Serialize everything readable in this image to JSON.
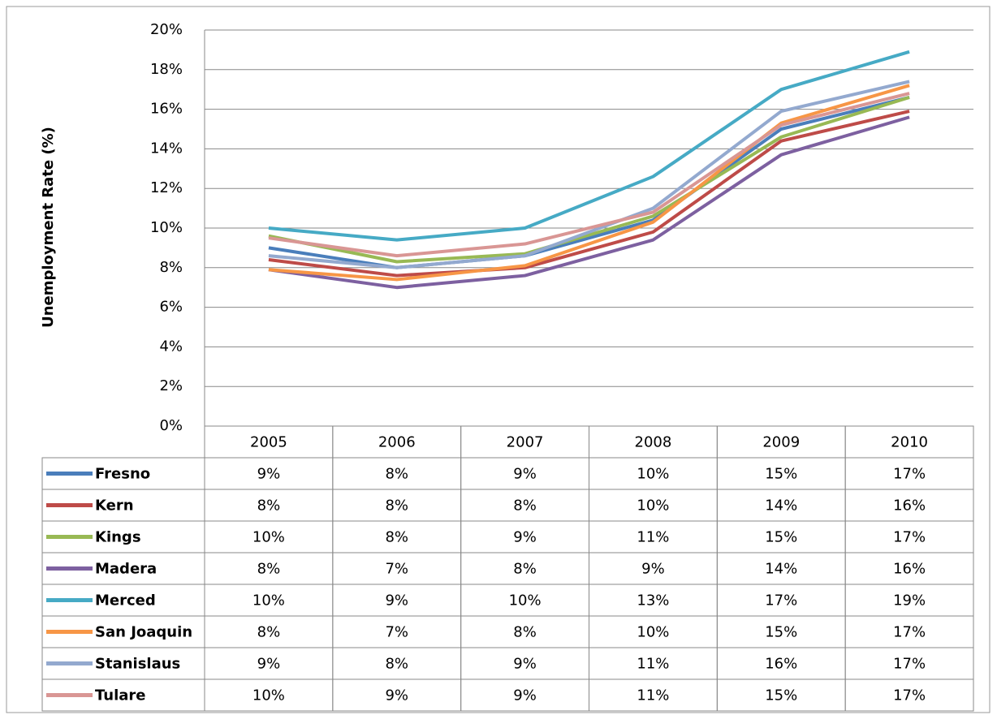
{
  "chart_data": {
    "type": "line",
    "y_label": "Unemployment Rate (%)",
    "categories": [
      "2005",
      "2006",
      "2007",
      "2008",
      "2009",
      "2010"
    ],
    "ylim": [
      0,
      20
    ],
    "yticks": [
      {
        "value": 0,
        "label": "0%"
      },
      {
        "value": 2,
        "label": "2%"
      },
      {
        "value": 4,
        "label": "4%"
      },
      {
        "value": 6,
        "label": "6%"
      },
      {
        "value": 8,
        "label": "8%"
      },
      {
        "value": 10,
        "label": "10%"
      },
      {
        "value": 12,
        "label": "12%"
      },
      {
        "value": 14,
        "label": "14%"
      },
      {
        "value": 16,
        "label": "16%"
      },
      {
        "value": 18,
        "label": "18%"
      },
      {
        "value": 20,
        "label": "20%"
      }
    ],
    "grid": true,
    "series": [
      {
        "name": "Fresno",
        "color": "#4a7ebb",
        "values": [
          9.0,
          8.0,
          8.6,
          10.4,
          15.0,
          16.6
        ],
        "value_labels": [
          "9%",
          "8%",
          "9%",
          "10%",
          "15%",
          "17%"
        ]
      },
      {
        "name": "Kern",
        "color": "#be4b48",
        "values": [
          8.4,
          7.6,
          8.0,
          9.8,
          14.4,
          15.9
        ],
        "value_labels": [
          "8%",
          "8%",
          "8%",
          "10%",
          "14%",
          "16%"
        ]
      },
      {
        "name": "Kings",
        "color": "#98b954",
        "values": [
          9.6,
          8.3,
          8.7,
          10.6,
          14.6,
          16.6
        ],
        "value_labels": [
          "10%",
          "8%",
          "9%",
          "11%",
          "15%",
          "17%"
        ]
      },
      {
        "name": "Madera",
        "color": "#7d60a0",
        "values": [
          7.9,
          7.0,
          7.6,
          9.4,
          13.7,
          15.6
        ],
        "value_labels": [
          "8%",
          "7%",
          "8%",
          "9%",
          "14%",
          "16%"
        ]
      },
      {
        "name": "Merced",
        "color": "#46aac5",
        "values": [
          10.0,
          9.4,
          10.0,
          12.6,
          17.0,
          18.9
        ],
        "value_labels": [
          "10%",
          "9%",
          "10%",
          "13%",
          "17%",
          "19%"
        ]
      },
      {
        "name": "San Joaquin",
        "color": "#f79646",
        "values": [
          7.9,
          7.4,
          8.1,
          10.3,
          15.3,
          17.2
        ],
        "value_labels": [
          "8%",
          "7%",
          "8%",
          "10%",
          "15%",
          "17%"
        ]
      },
      {
        "name": "Stanislaus",
        "color": "#93a9cf",
        "values": [
          8.6,
          8.0,
          8.6,
          11.0,
          15.9,
          17.4
        ],
        "value_labels": [
          "9%",
          "8%",
          "9%",
          "11%",
          "16%",
          "17%"
        ]
      },
      {
        "name": "Tulare",
        "color": "#d99694",
        "values": [
          9.5,
          8.6,
          9.2,
          10.8,
          15.2,
          16.8
        ],
        "value_labels": [
          "10%",
          "9%",
          "9%",
          "11%",
          "15%",
          "17%"
        ]
      }
    ]
  }
}
